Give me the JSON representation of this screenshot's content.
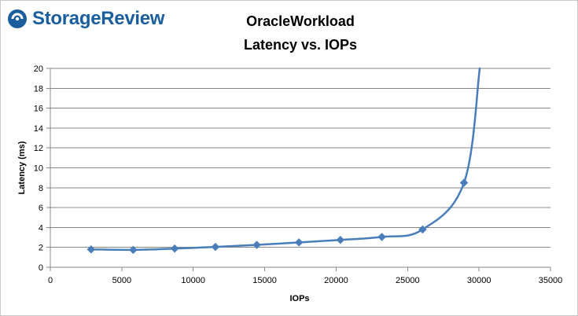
{
  "brand": {
    "name": "StorageReview",
    "color": "#1a5e9e"
  },
  "chart_data": {
    "type": "line",
    "title_lines": [
      "OracleWorkload",
      "Latency vs. IOPs"
    ],
    "xlabel": "IOPs",
    "ylabel": "Latency (ms)",
    "xlim": [
      0,
      35000
    ],
    "ylim": [
      0,
      20
    ],
    "x_ticks": [
      0,
      5000,
      10000,
      15000,
      20000,
      25000,
      30000,
      35000
    ],
    "y_ticks": [
      0,
      2,
      4,
      6,
      8,
      10,
      12,
      14,
      16,
      18,
      20
    ],
    "grid": true,
    "legend": "none",
    "series": [
      {
        "color": "#4a7ebb",
        "marker": "diamond",
        "points": [
          {
            "x": 2850,
            "y": 1.8
          },
          {
            "x": 5800,
            "y": 1.75
          },
          {
            "x": 8700,
            "y": 1.88
          },
          {
            "x": 11550,
            "y": 2.05
          },
          {
            "x": 14450,
            "y": 2.25
          },
          {
            "x": 17400,
            "y": 2.5
          },
          {
            "x": 20300,
            "y": 2.75
          },
          {
            "x": 23200,
            "y": 3.05
          },
          {
            "x": 26050,
            "y": 3.8
          },
          {
            "x": 28950,
            "y": 8.5
          }
        ],
        "tail_point": {
          "x": 30050,
          "y": 20
        }
      }
    ]
  }
}
